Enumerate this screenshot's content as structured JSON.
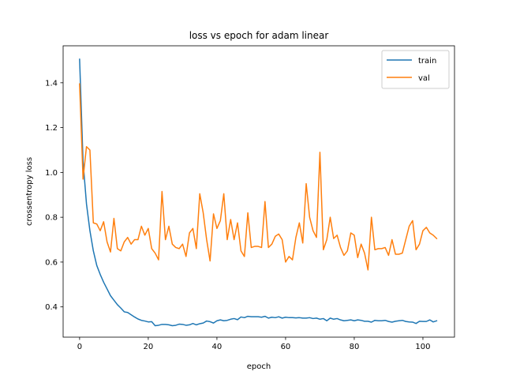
{
  "chart_data": {
    "type": "line",
    "title": "loss vs epoch for adam linear",
    "xlabel": "epoch",
    "ylabel": "crossentropy loss",
    "xlim": [
      -4.8,
      109.2
    ],
    "ylim": [
      0.265,
      1.565
    ],
    "xticks": [
      0,
      20,
      40,
      60,
      80,
      100
    ],
    "yticks": [
      0.4,
      0.6,
      0.8,
      1.0,
      1.2,
      1.4
    ],
    "xtick_labels": [
      "0",
      "20",
      "40",
      "60",
      "80",
      "100"
    ],
    "ytick_labels": [
      "0.4",
      "0.6",
      "0.8",
      "1.0",
      "1.2",
      "1.4"
    ],
    "legend_position": "top-right",
    "grid": false,
    "x": [
      0,
      1,
      2,
      3,
      4,
      5,
      6,
      7,
      8,
      9,
      10,
      11,
      12,
      13,
      14,
      15,
      16,
      17,
      18,
      19,
      20,
      21,
      22,
      23,
      24,
      25,
      26,
      27,
      28,
      29,
      30,
      31,
      32,
      33,
      34,
      35,
      36,
      37,
      38,
      39,
      40,
      41,
      42,
      43,
      44,
      45,
      46,
      47,
      48,
      49,
      50,
      51,
      52,
      53,
      54,
      55,
      56,
      57,
      58,
      59,
      60,
      61,
      62,
      63,
      64,
      65,
      66,
      67,
      68,
      69,
      70,
      71,
      72,
      73,
      74,
      75,
      76,
      77,
      78,
      79,
      80,
      81,
      82,
      83,
      84,
      85,
      86,
      87,
      88,
      89,
      90,
      91,
      92,
      93,
      94,
      95,
      96,
      97,
      98,
      99,
      100,
      101,
      102,
      103,
      104
    ],
    "series": [
      {
        "name": "train",
        "color": "#1f77b4",
        "values": [
          1.505,
          1.05,
          0.86,
          0.74,
          0.65,
          0.585,
          0.545,
          0.51,
          0.48,
          0.45,
          0.43,
          0.41,
          0.395,
          0.378,
          0.375,
          0.365,
          0.355,
          0.346,
          0.34,
          0.337,
          0.333,
          0.334,
          0.316,
          0.318,
          0.322,
          0.322,
          0.32,
          0.316,
          0.318,
          0.323,
          0.322,
          0.318,
          0.32,
          0.326,
          0.32,
          0.325,
          0.328,
          0.337,
          0.334,
          0.328,
          0.338,
          0.342,
          0.338,
          0.34,
          0.345,
          0.348,
          0.343,
          0.355,
          0.352,
          0.358,
          0.356,
          0.356,
          0.356,
          0.354,
          0.358,
          0.35,
          0.354,
          0.352,
          0.356,
          0.35,
          0.354,
          0.352,
          0.352,
          0.351,
          0.352,
          0.35,
          0.35,
          0.352,
          0.348,
          0.35,
          0.345,
          0.348,
          0.338,
          0.35,
          0.345,
          0.348,
          0.342,
          0.338,
          0.34,
          0.342,
          0.338,
          0.342,
          0.34,
          0.336,
          0.336,
          0.332,
          0.34,
          0.338,
          0.338,
          0.34,
          0.335,
          0.332,
          0.336,
          0.338,
          0.34,
          0.335,
          0.333,
          0.332,
          0.326,
          0.336,
          0.335,
          0.335,
          0.342,
          0.333,
          0.338
        ]
      },
      {
        "name": "val",
        "color": "#ff7f0e",
        "values": [
          1.395,
          0.97,
          1.115,
          1.1,
          0.775,
          0.77,
          0.74,
          0.78,
          0.69,
          0.645,
          0.795,
          0.66,
          0.65,
          0.69,
          0.71,
          0.68,
          0.7,
          0.7,
          0.76,
          0.72,
          0.75,
          0.66,
          0.64,
          0.61,
          0.915,
          0.7,
          0.76,
          0.68,
          0.665,
          0.66,
          0.68,
          0.625,
          0.73,
          0.75,
          0.66,
          0.905,
          0.82,
          0.7,
          0.605,
          0.815,
          0.75,
          0.785,
          0.905,
          0.7,
          0.79,
          0.7,
          0.775,
          0.65,
          0.625,
          0.82,
          0.665,
          0.67,
          0.67,
          0.665,
          0.87,
          0.665,
          0.68,
          0.715,
          0.725,
          0.7,
          0.6,
          0.625,
          0.61,
          0.71,
          0.775,
          0.685,
          0.95,
          0.8,
          0.74,
          0.71,
          1.09,
          0.655,
          0.7,
          0.8,
          0.705,
          0.72,
          0.665,
          0.63,
          0.65,
          0.73,
          0.72,
          0.62,
          0.68,
          0.64,
          0.565,
          0.8,
          0.655,
          0.66,
          0.66,
          0.665,
          0.63,
          0.7,
          0.635,
          0.635,
          0.64,
          0.7,
          0.76,
          0.785,
          0.655,
          0.68,
          0.74,
          0.755,
          0.73,
          0.72,
          0.705
        ]
      }
    ]
  }
}
